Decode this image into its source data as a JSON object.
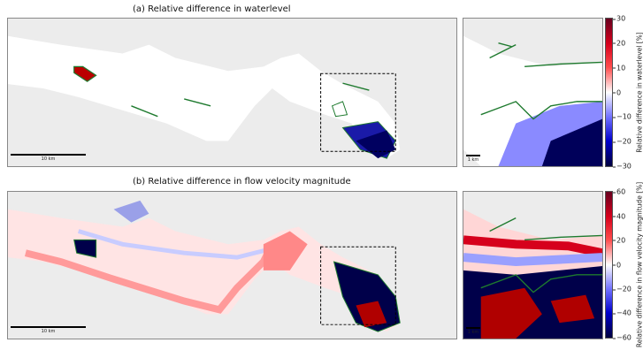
{
  "panel_a": {
    "title": "(a) Relative difference in waterlevel",
    "scale_main": "10 km",
    "scale_inset": "1 km",
    "colorbar": {
      "label": "Relative difference in waterlevel [%]",
      "ticks": [
        "30",
        "20",
        "10",
        "0",
        "−10",
        "−20",
        "−30"
      ],
      "range": [
        -30,
        30
      ],
      "colormap": [
        "#67001f",
        "#d6001c",
        "#ff4d4d",
        "#ffffff",
        "#6f6fff",
        "#0000cc",
        "#00003f"
      ]
    }
  },
  "panel_b": {
    "title": "(b) Relative difference in flow velocity magnitude",
    "scale_main": "10 km",
    "scale_inset": "1 km",
    "colorbar": {
      "label": "Relative difference in flow velocity magnitude [%]",
      "ticks": [
        "60",
        "40",
        "20",
        "0",
        "−20",
        "−40",
        "−60"
      ],
      "range": [
        -60,
        60
      ],
      "colormap": [
        "#67001f",
        "#d6001c",
        "#ff4d4d",
        "#ffffff",
        "#6f6fff",
        "#0000cc",
        "#00003f"
      ]
    }
  },
  "colors": {
    "land": "#ececec",
    "water": "#ffffff",
    "dry_contour": "#1e7a2e",
    "zoom_box": "#000000"
  }
}
